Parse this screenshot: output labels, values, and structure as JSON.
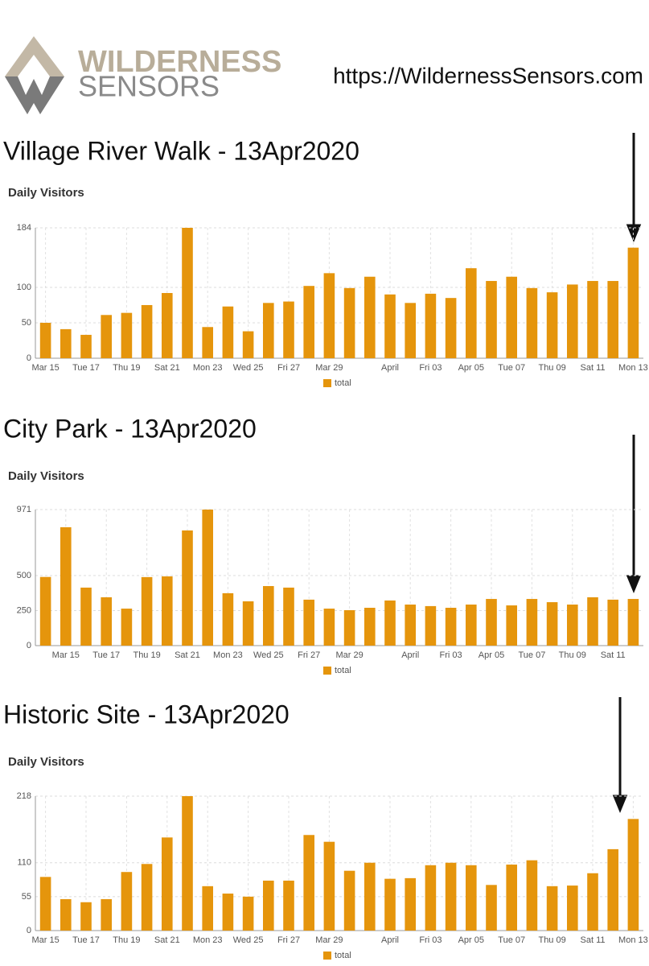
{
  "header": {
    "logo_line1": "WILDERNESS",
    "logo_line2": "SENSORS",
    "url": "https://WildernessSensors.com"
  },
  "chart_data": [
    {
      "type": "bar",
      "title": "Village River Walk - 13Apr2020",
      "subtitle": "Daily Visitors",
      "categories": [
        "Mar 15",
        null,
        "Tue 17",
        null,
        "Thu 19",
        null,
        "Sat 21",
        null,
        "Mon 23",
        null,
        "Wed 25",
        null,
        "Fri 27",
        null,
        "Mar 29",
        null,
        null,
        "April",
        null,
        "Fri 03",
        null,
        "Apr 05",
        null,
        "Tue 07",
        null,
        "Thu 09",
        null,
        "Sat 11",
        null,
        "Mon 13"
      ],
      "series": [
        {
          "name": "total",
          "color": "#e5950c",
          "values": [
            50,
            41,
            33,
            61,
            64,
            75,
            92,
            184,
            44,
            73,
            38,
            78,
            80,
            102,
            120,
            99,
            115,
            90,
            78,
            91,
            85,
            127,
            109,
            115,
            99,
            93,
            104,
            109,
            109,
            156
          ]
        }
      ],
      "ylim": [
        0,
        184
      ],
      "yticks": [
        0,
        50,
        100,
        184
      ],
      "grid": true
    },
    {
      "type": "bar",
      "title": "City Park - 13Apr2020",
      "subtitle": "Daily Visitors",
      "categories": [
        null,
        "Mar 15",
        null,
        "Tue 17",
        null,
        "Thu 19",
        null,
        "Sat 21",
        null,
        "Mon 23",
        null,
        "Wed 25",
        null,
        "Fri 27",
        null,
        "Mar 29",
        null,
        null,
        "April",
        null,
        "Fri 03",
        null,
        "Apr 05",
        null,
        "Tue 07",
        null,
        "Thu 09",
        null,
        "Sat 11",
        null
      ],
      "series": [
        {
          "name": "total",
          "color": "#e5950c",
          "values": [
            490,
            845,
            414,
            345,
            264,
            489,
            494,
            822,
            971,
            374,
            316,
            425,
            414,
            328,
            264,
            253,
            270,
            322,
            293,
            282,
            270,
            293,
            333,
            287,
            333,
            310,
            293,
            345,
            328,
            333
          ]
        }
      ],
      "ylim": [
        0,
        971
      ],
      "yticks": [
        0,
        250,
        500,
        971
      ],
      "grid": true
    },
    {
      "type": "bar",
      "title": "Historic Site - 13Apr2020",
      "subtitle": "Daily Visitors",
      "categories": [
        "Mar 15",
        null,
        "Tue 17",
        null,
        "Thu 19",
        null,
        "Sat 21",
        null,
        "Mon 23",
        null,
        "Wed 25",
        null,
        "Fri 27",
        null,
        "Mar 29",
        null,
        null,
        "April",
        null,
        "Fri 03",
        null,
        "Apr 05",
        null,
        "Tue 07",
        null,
        "Thu 09",
        null,
        "Sat 11",
        null,
        "Mon 13"
      ],
      "series": [
        {
          "name": "total",
          "color": "#e5950c",
          "values": [
            87,
            51,
            46,
            51,
            95,
            108,
            151,
            218,
            72,
            60,
            55,
            81,
            81,
            155,
            144,
            97,
            110,
            84,
            85,
            106,
            110,
            106,
            74,
            107,
            114,
            72,
            73,
            93,
            132,
            181
          ]
        }
      ],
      "ylim": [
        0,
        218
      ],
      "yticks": [
        0,
        55,
        110,
        218
      ],
      "grid": true
    }
  ]
}
